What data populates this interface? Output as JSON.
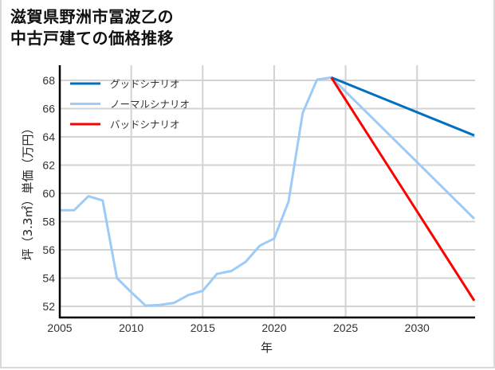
{
  "title": {
    "line1": "滋賀県野洲市冨波乙の",
    "line2": "中古戸建ての価格推移"
  },
  "chart_data": {
    "type": "line",
    "title": "滋賀県野洲市冨波乙の中古戸建ての価格推移",
    "xlabel": "年",
    "ylabel": "坪（3.3㎡）単価（万円）",
    "xlim": [
      2005,
      2034
    ],
    "ylim": [
      51.2,
      69.0
    ],
    "xticks": [
      2005,
      2010,
      2015,
      2020,
      2025,
      2030
    ],
    "yticks": [
      52,
      54,
      56,
      58,
      60,
      62,
      64,
      66,
      68
    ],
    "grid": true,
    "legend_position": "upper left",
    "series": [
      {
        "name": "グッドシナリオ",
        "color": "#0070c0",
        "x": [
          2024,
          2034
        ],
        "values": [
          68.2,
          64.1
        ]
      },
      {
        "name": "ノーマルシナリオ",
        "color": "#9dcbf8",
        "x": [
          2005,
          2006,
          2007,
          2008,
          2009,
          2010,
          2011,
          2012,
          2013,
          2014,
          2015,
          2016,
          2017,
          2018,
          2019,
          2020,
          2021,
          2022,
          2023,
          2024,
          2034
        ],
        "values": [
          58.8,
          58.8,
          59.8,
          59.5,
          54.0,
          53.0,
          52.05,
          52.1,
          52.25,
          52.8,
          53.1,
          54.3,
          54.5,
          55.15,
          56.3,
          56.8,
          59.4,
          65.7,
          68.05,
          68.2,
          58.2
        ]
      },
      {
        "name": "バッドシナリオ",
        "color": "#ff0000",
        "x": [
          2024,
          2034
        ],
        "values": [
          68.2,
          52.4
        ]
      }
    ]
  }
}
